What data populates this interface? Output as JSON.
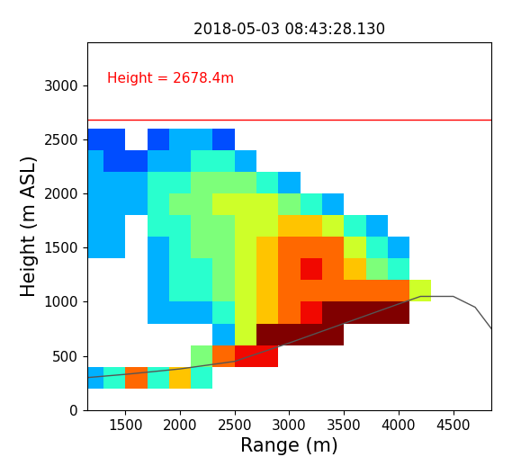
{
  "chart_data": {
    "type": "heatmap",
    "title": "2018-05-03 08:43:28.130",
    "x_label": "Range (m)",
    "y_label": "Height (m ASL)",
    "annotation": "Height = 2678.4m",
    "line_height": 2678.4,
    "line_color": "#ff0000",
    "xlim": [
      1150,
      4850
    ],
    "xticks": [
      1500,
      2000,
      2500,
      3000,
      3500,
      4000,
      4500
    ],
    "ylim": [
      0,
      3400
    ],
    "yticks": [
      0,
      500,
      1000,
      1500,
      2000,
      2500,
      3000
    ],
    "color_range": [
      0,
      10
    ],
    "x": [
      1200,
      1400,
      1600,
      1800,
      2000,
      2200,
      2400,
      2600,
      2800,
      3000,
      3200,
      3400,
      3600,
      3800,
      4000,
      4200,
      4400,
      4600,
      4800
    ],
    "y": [
      100,
      300,
      500,
      700,
      900,
      1100,
      1300,
      1500,
      1700,
      1900,
      2100,
      2300,
      2500,
      2700,
      2900,
      3100,
      3300
    ],
    "cells": [
      [
        null,
        null,
        null,
        null,
        null,
        null,
        null,
        null,
        null,
        null,
        null,
        null,
        null,
        null,
        null,
        null,
        null,
        null,
        null
      ],
      [
        3,
        4,
        8,
        4,
        7,
        4,
        null,
        null,
        null,
        null,
        null,
        null,
        null,
        null,
        null,
        null,
        null,
        null,
        null
      ],
      [
        null,
        null,
        null,
        null,
        null,
        5,
        8,
        9,
        9,
        null,
        null,
        null,
        null,
        null,
        null,
        null,
        null,
        null,
        null
      ],
      [
        null,
        null,
        null,
        null,
        null,
        null,
        3,
        6,
        10,
        10,
        10,
        10,
        null,
        null,
        null,
        null,
        null,
        null,
        null
      ],
      [
        null,
        null,
        null,
        3,
        3,
        3,
        4,
        6,
        7,
        8,
        9,
        10,
        10,
        10,
        10,
        null,
        null,
        null,
        null
      ],
      [
        null,
        null,
        null,
        3,
        4,
        4,
        5,
        6,
        7,
        8,
        8,
        8,
        8,
        8,
        8,
        6,
        null,
        null,
        null
      ],
      [
        null,
        null,
        null,
        3,
        4,
        4,
        5,
        6,
        7,
        8,
        9,
        8,
        7,
        5,
        4,
        null,
        null,
        null,
        null
      ],
      [
        3,
        3,
        null,
        3,
        4,
        5,
        5,
        6,
        7,
        8,
        8,
        8,
        6,
        4,
        3,
        null,
        null,
        null,
        null
      ],
      [
        3,
        3,
        null,
        4,
        4,
        5,
        5,
        6,
        6,
        7,
        7,
        6,
        4,
        3,
        null,
        null,
        null,
        null,
        null
      ],
      [
        3,
        3,
        3,
        4,
        5,
        5,
        6,
        6,
        6,
        5,
        4,
        3,
        null,
        null,
        null,
        null,
        null,
        null,
        null
      ],
      [
        3,
        3,
        3,
        4,
        4,
        5,
        5,
        5,
        4,
        3,
        null,
        null,
        null,
        null,
        null,
        null,
        null,
        null,
        null
      ],
      [
        3,
        2,
        2,
        3,
        3,
        4,
        4,
        3,
        null,
        null,
        null,
        null,
        null,
        null,
        null,
        null,
        null,
        null,
        null
      ],
      [
        2,
        2,
        null,
        2,
        3,
        3,
        2,
        null,
        null,
        null,
        null,
        null,
        null,
        null,
        null,
        null,
        null,
        null,
        null
      ],
      [
        null,
        null,
        null,
        null,
        null,
        null,
        null,
        null,
        null,
        null,
        null,
        null,
        null,
        null,
        null,
        null,
        null,
        null,
        null
      ],
      [
        null,
        null,
        null,
        null,
        null,
        null,
        null,
        null,
        null,
        null,
        null,
        null,
        null,
        null,
        null,
        null,
        null,
        null,
        null
      ],
      [
        null,
        null,
        null,
        null,
        null,
        null,
        null,
        null,
        null,
        null,
        null,
        null,
        null,
        null,
        null,
        null,
        null,
        null,
        null
      ],
      [
        null,
        null,
        null,
        null,
        null,
        null,
        null,
        null,
        null,
        null,
        null,
        null,
        null,
        null,
        null,
        null,
        null,
        null,
        null
      ]
    ],
    "terrain": {
      "color": "#555555",
      "x": [
        1150,
        1500,
        2000,
        2500,
        3000,
        3500,
        4000,
        4200,
        4500,
        4700,
        4850
      ],
      "y": [
        300,
        330,
        380,
        450,
        620,
        800,
        980,
        1050,
        1050,
        950,
        750
      ]
    }
  }
}
